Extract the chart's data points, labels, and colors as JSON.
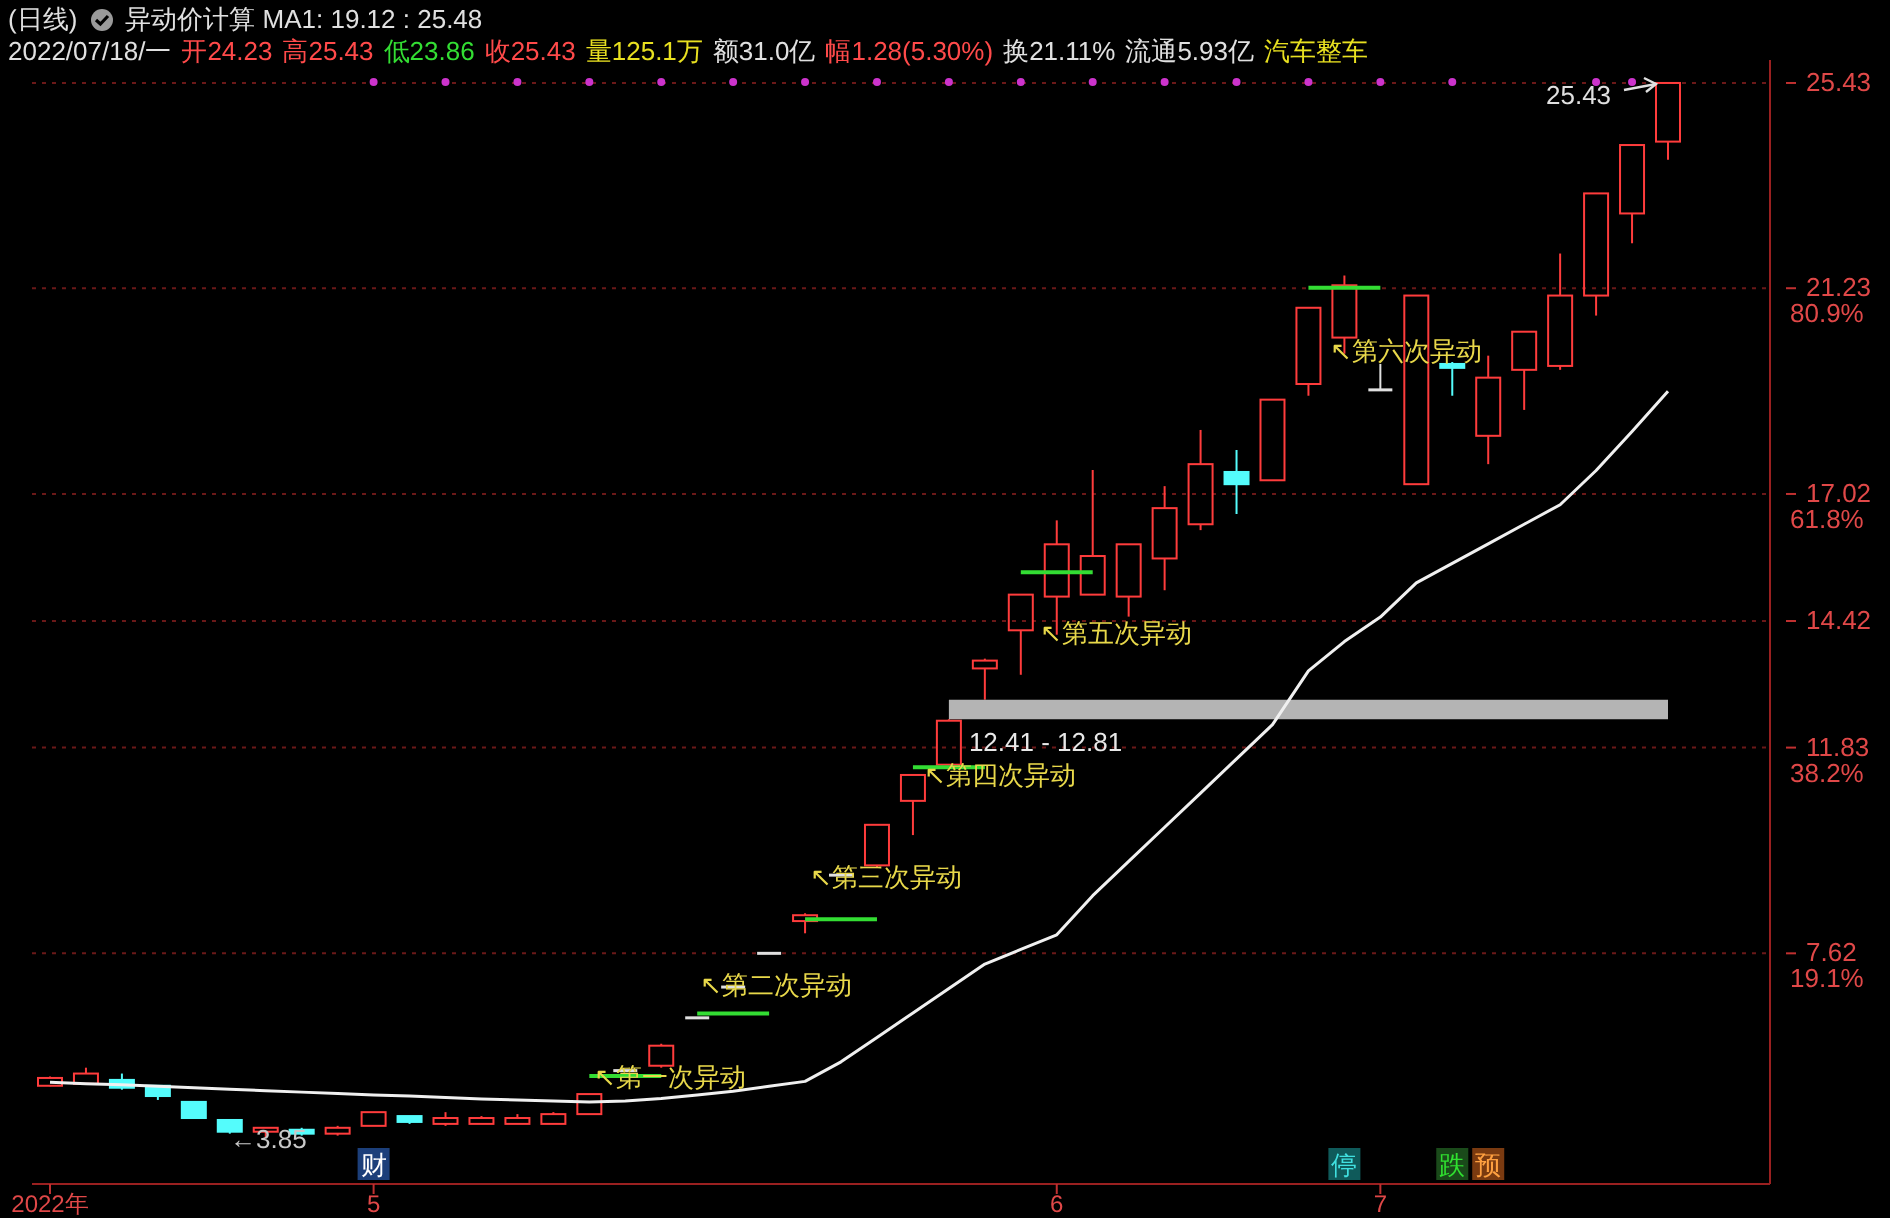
{
  "chart_data": {
    "type": "candlestick",
    "title": "(日线)",
    "subtitle": "异动价计算  MA1: 19.12 : 25.48",
    "categories": [
      "2022年",
      null,
      null,
      null,
      null,
      null,
      null,
      null,
      null,
      "5",
      null,
      null,
      null,
      null,
      null,
      null,
      null,
      null,
      null,
      null,
      null,
      null,
      null,
      null,
      null,
      null,
      null,
      null,
      "6",
      null,
      null,
      null,
      null,
      null,
      null,
      null,
      null,
      "7",
      null,
      null,
      null,
      null,
      null,
      null,
      null,
      null
    ],
    "ohlc": [
      [
        4.91,
        5.1,
        4.9,
        5.07
      ],
      [
        4.95,
        5.28,
        4.95,
        5.16
      ],
      [
        5.03,
        5.16,
        4.83,
        4.87
      ],
      [
        4.91,
        4.91,
        4.62,
        4.7
      ],
      [
        4.58,
        4.58,
        4.25,
        4.25
      ],
      [
        4.21,
        4.21,
        3.93,
        3.97
      ],
      [
        3.97,
        4.05,
        3.85,
        4.05
      ],
      [
        4.01,
        4.05,
        3.89,
        3.93
      ],
      [
        3.93,
        4.09,
        3.89,
        4.05
      ],
      [
        4.09,
        4.37,
        4.09,
        4.37
      ],
      [
        4.29,
        4.29,
        4.13,
        4.17
      ],
      [
        4.13,
        4.37,
        4.09,
        4.25
      ],
      [
        4.13,
        4.29,
        4.13,
        4.25
      ],
      [
        4.13,
        4.33,
        4.13,
        4.25
      ],
      [
        4.13,
        4.37,
        4.13,
        4.33
      ],
      [
        4.33,
        4.74,
        4.33,
        4.74
      ],
      [
        5.22,
        5.22,
        5.22,
        5.22
      ],
      [
        5.32,
        5.77,
        5.28,
        5.73
      ],
      [
        6.3,
        6.3,
        6.3,
        6.3
      ],
      [
        6.93,
        6.93,
        6.93,
        6.93
      ],
      [
        7.62,
        7.62,
        7.62,
        7.62
      ],
      [
        8.28,
        8.44,
        8.03,
        8.4
      ],
      [
        9.22,
        9.22,
        9.22,
        9.22
      ],
      [
        9.42,
        10.25,
        9.38,
        10.25
      ],
      [
        10.74,
        11.27,
        10.04,
        11.27
      ],
      [
        11.48,
        12.41,
        11.48,
        12.38
      ],
      [
        13.45,
        13.65,
        12.81,
        13.61
      ],
      [
        14.23,
        14.96,
        13.32,
        14.96
      ],
      [
        14.92,
        16.48,
        14.14,
        15.99
      ],
      [
        14.96,
        17.51,
        14.96,
        15.75
      ],
      [
        14.92,
        15.99,
        14.51,
        15.99
      ],
      [
        15.7,
        17.18,
        15.05,
        16.73
      ],
      [
        16.4,
        18.33,
        16.28,
        17.63
      ],
      [
        17.47,
        17.92,
        16.61,
        17.22
      ],
      [
        17.3,
        18.95,
        17.3,
        18.95
      ],
      [
        19.27,
        20.83,
        19.03,
        20.83
      ],
      [
        20.22,
        21.49,
        19.89,
        21.29
      ],
      [
        19.15,
        19.68,
        19.15,
        19.15
      ],
      [
        17.22,
        21.08,
        17.22,
        21.08
      ],
      [
        19.68,
        19.72,
        19.03,
        19.6
      ],
      [
        18.21,
        19.85,
        17.63,
        19.4
      ],
      [
        19.56,
        20.34,
        18.74,
        20.34
      ],
      [
        19.64,
        21.94,
        19.56,
        21.08
      ],
      [
        21.08,
        23.17,
        20.67,
        23.17
      ],
      [
        22.76,
        24.16,
        22.15,
        24.16
      ],
      [
        24.23,
        25.43,
        23.86,
        25.43
      ]
    ],
    "colors": [
      "#ff3c3c",
      "#ff3c3c",
      "#54fcfc",
      "#54fcfc",
      "#54fcfc",
      "#54fcfc",
      "#ff3c3c",
      "#54fcfc",
      "#ff3c3c",
      "#ff3c3c",
      "#54fcfc",
      "#ff3c3c",
      "#ff3c3c",
      "#ff3c3c",
      "#ff3c3c",
      "#ff3c3c",
      "#e0e0e0",
      "#ff3c3c",
      "#e0e0e0",
      "#e0e0e0",
      "#e0e0e0",
      "#ff3c3c",
      "#e0e0e0",
      "#ff3c3c",
      "#ff3c3c",
      "#ff3c3c",
      "#ff3c3c",
      "#ff3c3c",
      "#ff3c3c",
      "#ff3c3c",
      "#ff3c3c",
      "#ff3c3c",
      "#ff3c3c",
      "#54fcfc",
      "#ff3c3c",
      "#ff3c3c",
      "#ff3c3c",
      "#e0e0e0",
      "#ff3c3c",
      "#54fcfc",
      "#ff3c3c",
      "#ff3c3c",
      "#ff3c3c",
      "#ff3c3c",
      "#ff3c3c",
      "#ff3c3c"
    ],
    "series": [
      {
        "type": "line",
        "color": "#f0f0f0",
        "values": [
          4.98,
          4.95,
          4.93,
          4.9,
          4.87,
          4.84,
          4.81,
          4.78,
          4.75,
          4.72,
          4.7,
          4.67,
          4.64,
          4.62,
          4.6,
          4.58,
          4.6,
          4.65,
          4.72,
          4.8,
          4.9,
          5.0,
          5.4,
          5.9,
          6.4,
          6.9,
          7.4,
          7.7,
          8.0,
          8.8,
          9.5,
          10.2,
          10.9,
          11.6,
          12.3,
          13.4,
          14.0,
          14.5,
          15.2,
          15.6,
          16.0,
          16.4,
          16.8,
          17.5,
          18.3,
          19.12
        ]
      },
      {
        "type": "line",
        "color": "#33dd33",
        "values": [
          null,
          null,
          null,
          null,
          null,
          null,
          null,
          null,
          null,
          null,
          null,
          null,
          null,
          null,
          null,
          5.11,
          5.11,
          5.11,
          null,
          null,
          null,
          8.32,
          8.32,
          8.32,
          null,
          null,
          null,
          15.42,
          15.42,
          15.42,
          null,
          null,
          null,
          null,
          null,
          null,
          null,
          null,
          null,
          null,
          null,
          null,
          null,
          null,
          null,
          null
        ]
      },
      {
        "type": "line",
        "color": "#33dd33",
        "values": [
          null,
          null,
          null,
          null,
          null,
          null,
          null,
          null,
          null,
          null,
          null,
          null,
          null,
          null,
          null,
          null,
          null,
          null,
          6.39,
          6.39,
          6.39,
          null,
          null,
          null,
          11.43,
          11.43,
          11.43,
          null,
          null,
          null,
          null,
          null,
          null,
          null,
          null,
          21.24,
          21.24,
          21.24,
          null,
          null,
          null,
          null,
          null,
          null,
          null,
          null
        ]
      },
      {
        "type": "scatter",
        "color": "#cc33cc",
        "values": [
          null,
          null,
          null,
          null,
          null,
          null,
          null,
          null,
          null,
          25.45,
          null,
          25.45,
          null,
          25.45,
          null,
          25.45,
          null,
          25.45,
          null,
          25.45,
          null,
          25.45,
          null,
          25.45,
          null,
          25.45,
          null,
          25.45,
          null,
          25.45,
          null,
          25.45,
          null,
          25.45,
          null,
          25.45,
          null,
          25.45,
          null,
          25.45,
          null,
          null,
          null,
          25.45,
          25.45,
          null
        ]
      }
    ],
    "ylim": [
      2.9,
      25.9
    ],
    "yticks": [
      25.43,
      21.23,
      17.02,
      14.42,
      11.83,
      7.62
    ],
    "y2lim": [
      -2.33,
      102.1
    ],
    "y2ticks": [
      {
        "value": 80.9,
        "label": "80.9%"
      },
      {
        "value": 61.8,
        "label": "61.8%"
      },
      {
        "value": 38.2,
        "label": "38.2%"
      },
      {
        "value": 19.1,
        "label": "19.1%"
      }
    ],
    "grid": "y",
    "bands": [
      {
        "axis": "y",
        "from": 12.41,
        "to": 12.81,
        "label": "12.41 - 12.81",
        "color": "#b4b4b4"
      }
    ],
    "annotations": [
      "2022/07/18/一",
      "开24.23",
      "高25.43",
      "低23.86",
      "收25.43",
      "量125.1万",
      "额31.0亿",
      "幅1.28(5.30%)",
      "换21.11%",
      "流通5.93亿",
      "汽车整车",
      "财",
      "停",
      "跌",
      "预",
      "↖第一次异动",
      "↖第二次异动",
      "↖第三次异动",
      "↖第四次异动",
      "↖第五次异动",
      "↖第六次异动",
      "←3.85",
      "25.43"
    ]
  }
}
